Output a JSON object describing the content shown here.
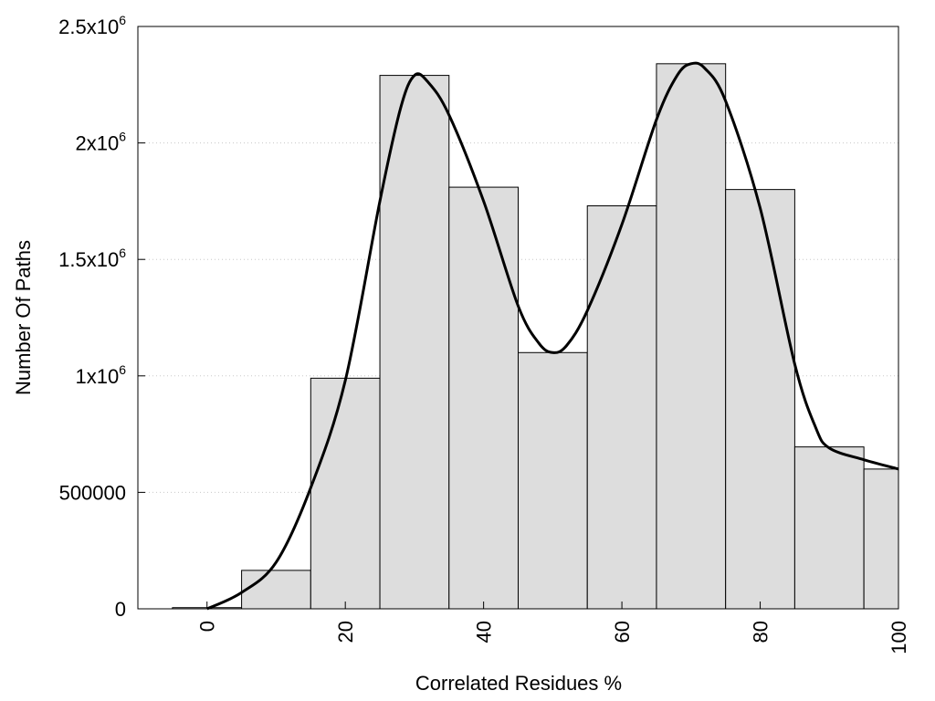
{
  "chart_data": {
    "type": "bar",
    "xlabel": "Correlated Residues %",
    "ylabel": "Number Of Paths",
    "xlim": [
      -10,
      100
    ],
    "ylim": [
      0,
      2500000
    ],
    "grid": "horizontal-dotted",
    "bar_color": "#dddddd",
    "bar_stroke": "#000000",
    "curve_color": "#000000",
    "x_ticks": [
      {
        "value": 0,
        "label": "0"
      },
      {
        "value": 20,
        "label": "20"
      },
      {
        "value": 40,
        "label": "40"
      },
      {
        "value": 60,
        "label": "60"
      },
      {
        "value": 80,
        "label": "80"
      },
      {
        "value": 100,
        "label": "100"
      }
    ],
    "y_ticks": [
      {
        "value": 0,
        "base": "0",
        "exp": ""
      },
      {
        "value": 500000,
        "base": "500000",
        "exp": ""
      },
      {
        "value": 1000000,
        "base": "1x10",
        "exp": "6"
      },
      {
        "value": 1500000,
        "base": "1.5x10",
        "exp": "6"
      },
      {
        "value": 2000000,
        "base": "2x10",
        "exp": "6"
      },
      {
        "value": 2500000,
        "base": "2.5x10",
        "exp": "6"
      }
    ],
    "bins": [
      {
        "x0": -5,
        "x1": 5,
        "value": 5000
      },
      {
        "x0": 5,
        "x1": 15,
        "value": 165000
      },
      {
        "x0": 15,
        "x1": 25,
        "value": 990000
      },
      {
        "x0": 25,
        "x1": 35,
        "value": 2290000
      },
      {
        "x0": 35,
        "x1": 45,
        "value": 1810000
      },
      {
        "x0": 45,
        "x1": 55,
        "value": 1100000
      },
      {
        "x0": 55,
        "x1": 65,
        "value": 1730000
      },
      {
        "x0": 65,
        "x1": 75,
        "value": 2340000
      },
      {
        "x0": 75,
        "x1": 85,
        "value": 1800000
      },
      {
        "x0": 85,
        "x1": 95,
        "value": 695000
      },
      {
        "x0": 95,
        "x1": 100,
        "value": 600000
      }
    ],
    "curve": {
      "x": [
        0,
        5,
        10,
        15,
        20,
        25,
        28,
        30,
        32,
        35,
        40,
        45,
        48,
        50,
        52,
        55,
        60,
        65,
        68,
        70,
        72,
        75,
        80,
        85,
        88,
        90,
        95,
        100
      ],
      "y": [
        0,
        70000,
        200000,
        520000,
        980000,
        1750000,
        2150000,
        2290000,
        2260000,
        2120000,
        1750000,
        1300000,
        1140000,
        1100000,
        1130000,
        1280000,
        1650000,
        2100000,
        2290000,
        2340000,
        2320000,
        2180000,
        1720000,
        1050000,
        780000,
        690000,
        640000,
        600000
      ]
    }
  }
}
